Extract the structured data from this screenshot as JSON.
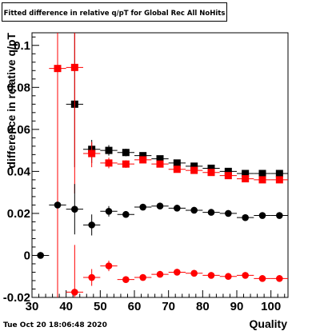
{
  "timestamp": "Tue Oct 20 18:06:48 2020",
  "colors": {
    "series_black": "#000000",
    "series_red": "#ff0000",
    "frame": "#000000"
  },
  "chart_data": {
    "type": "scatter",
    "title": "Fitted difference in relative q/pT for Global Rec All NoHits",
    "xlabel": "Quality",
    "ylabel": "difference in relative q/pT",
    "xlim": [
      30,
      105
    ],
    "ylim": [
      -0.02,
      0.106
    ],
    "x_ticks": [
      30,
      40,
      50,
      60,
      70,
      80,
      90,
      100
    ],
    "x_tick_labels": [
      "30",
      "40",
      "50",
      "60",
      "70",
      "80",
      "90",
      "100"
    ],
    "y_ticks": [
      -0.02,
      0,
      0.02,
      0.04,
      0.06,
      0.08,
      0.1
    ],
    "y_tick_labels": [
      "-0.02",
      "0",
      "0.02",
      "0.04",
      "0.06",
      "0.08",
      "0.1"
    ],
    "grid": false,
    "legend": "none",
    "series": [
      {
        "color": "#000000",
        "marker": "square",
        "points": [
          {
            "x": 42.5,
            "y": 0.072,
            "ex": 2.5,
            "ey_lo": 0.03,
            "ey_hi": 0.04
          },
          {
            "x": 47.5,
            "y": 0.0505,
            "ex": 2.5,
            "ey_lo": 0.0065,
            "ey_hi": 0.0045
          },
          {
            "x": 52.5,
            "y": 0.05,
            "ex": 2.5,
            "ey_lo": 0.0025,
            "ey_hi": 0.0025
          },
          {
            "x": 57.5,
            "y": 0.049,
            "ex": 2.5,
            "ey_lo": 0.0018,
            "ey_hi": 0.0018
          },
          {
            "x": 62.5,
            "y": 0.0475,
            "ex": 2.5,
            "ey_lo": 0.0015,
            "ey_hi": 0.0015
          },
          {
            "x": 67.5,
            "y": 0.046,
            "ex": 2.5,
            "ey_lo": 0.0013,
            "ey_hi": 0.0013
          },
          {
            "x": 72.5,
            "y": 0.044,
            "ex": 2.5,
            "ey_lo": 0.0012,
            "ey_hi": 0.0012
          },
          {
            "x": 77.5,
            "y": 0.0425,
            "ex": 2.5,
            "ey_lo": 0.0011,
            "ey_hi": 0.0011
          },
          {
            "x": 82.5,
            "y": 0.0415,
            "ex": 2.5,
            "ey_lo": 0.0011,
            "ey_hi": 0.0011
          },
          {
            "x": 87.5,
            "y": 0.04,
            "ex": 2.5,
            "ey_lo": 0.001,
            "ey_hi": 0.001
          },
          {
            "x": 92.5,
            "y": 0.039,
            "ex": 2.5,
            "ey_lo": 0.001,
            "ey_hi": 0.001
          },
          {
            "x": 97.5,
            "y": 0.039,
            "ex": 2.5,
            "ey_lo": 0.001,
            "ey_hi": 0.001
          },
          {
            "x": 102.5,
            "y": 0.039,
            "ex": 2.5,
            "ey_lo": 0.001,
            "ey_hi": 0.001
          }
        ]
      },
      {
        "color": "#ff0000",
        "marker": "square",
        "points": [
          {
            "x": 37.5,
            "y": 0.089,
            "ex": 2.5,
            "ey_lo": 0.109,
            "ey_hi": 0.02
          },
          {
            "x": 42.5,
            "y": 0.0895,
            "ex": 2.5,
            "ey_lo": 0.06,
            "ey_hi": 0.02
          },
          {
            "x": 47.5,
            "y": 0.0485,
            "ex": 2.5,
            "ey_lo": 0.0065,
            "ey_hi": 0.0055
          },
          {
            "x": 52.5,
            "y": 0.044,
            "ex": 2.5,
            "ey_lo": 0.0025,
            "ey_hi": 0.0025
          },
          {
            "x": 57.5,
            "y": 0.0435,
            "ex": 2.5,
            "ey_lo": 0.0018,
            "ey_hi": 0.0018
          },
          {
            "x": 62.5,
            "y": 0.0455,
            "ex": 2.5,
            "ey_lo": 0.0015,
            "ey_hi": 0.0015
          },
          {
            "x": 67.5,
            "y": 0.0435,
            "ex": 2.5,
            "ey_lo": 0.0013,
            "ey_hi": 0.0013
          },
          {
            "x": 72.5,
            "y": 0.041,
            "ex": 2.5,
            "ey_lo": 0.0012,
            "ey_hi": 0.0012
          },
          {
            "x": 77.5,
            "y": 0.0405,
            "ex": 2.5,
            "ey_lo": 0.0011,
            "ey_hi": 0.0011
          },
          {
            "x": 82.5,
            "y": 0.0395,
            "ex": 2.5,
            "ey_lo": 0.0011,
            "ey_hi": 0.0011
          },
          {
            "x": 87.5,
            "y": 0.038,
            "ex": 2.5,
            "ey_lo": 0.001,
            "ey_hi": 0.001
          },
          {
            "x": 92.5,
            "y": 0.0365,
            "ex": 2.5,
            "ey_lo": 0.001,
            "ey_hi": 0.001
          },
          {
            "x": 97.5,
            "y": 0.036,
            "ex": 2.5,
            "ey_lo": 0.001,
            "ey_hi": 0.001
          },
          {
            "x": 102.5,
            "y": 0.036,
            "ex": 2.5,
            "ey_lo": 0.001,
            "ey_hi": 0.001
          }
        ]
      },
      {
        "color": "#000000",
        "marker": "circle",
        "points": [
          {
            "x": 32.5,
            "y": 0.0,
            "ex": 2.5,
            "ey_lo": 0.0,
            "ey_hi": 0.0
          },
          {
            "x": 37.5,
            "y": 0.024,
            "ex": 2.5,
            "ey_lo": 0.0,
            "ey_hi": 0.0
          },
          {
            "x": 42.5,
            "y": 0.022,
            "ex": 2.5,
            "ey_lo": 0.012,
            "ey_hi": 0.012
          },
          {
            "x": 47.5,
            "y": 0.0145,
            "ex": 2.5,
            "ey_lo": 0.005,
            "ey_hi": 0.005
          },
          {
            "x": 52.5,
            "y": 0.021,
            "ex": 2.5,
            "ey_lo": 0.0025,
            "ey_hi": 0.0025
          },
          {
            "x": 57.5,
            "y": 0.0195,
            "ex": 2.5,
            "ey_lo": 0.0015,
            "ey_hi": 0.0015
          },
          {
            "x": 62.5,
            "y": 0.023,
            "ex": 2.5,
            "ey_lo": 0.0013,
            "ey_hi": 0.0013
          },
          {
            "x": 67.5,
            "y": 0.0235,
            "ex": 2.5,
            "ey_lo": 0.0012,
            "ey_hi": 0.0012
          },
          {
            "x": 72.5,
            "y": 0.0225,
            "ex": 2.5,
            "ey_lo": 0.0011,
            "ey_hi": 0.0011
          },
          {
            "x": 77.5,
            "y": 0.0215,
            "ex": 2.5,
            "ey_lo": 0.001,
            "ey_hi": 0.001
          },
          {
            "x": 82.5,
            "y": 0.0205,
            "ex": 2.5,
            "ey_lo": 0.001,
            "ey_hi": 0.001
          },
          {
            "x": 87.5,
            "y": 0.02,
            "ex": 2.5,
            "ey_lo": 0.001,
            "ey_hi": 0.001
          },
          {
            "x": 92.5,
            "y": 0.018,
            "ex": 2.5,
            "ey_lo": 0.001,
            "ey_hi": 0.001
          },
          {
            "x": 97.5,
            "y": 0.019,
            "ex": 2.5,
            "ey_lo": 0.001,
            "ey_hi": 0.001
          },
          {
            "x": 102.5,
            "y": 0.019,
            "ex": 2.5,
            "ey_lo": 0.001,
            "ey_hi": 0.001
          }
        ]
      },
      {
        "color": "#ff0000",
        "marker": "circle",
        "points": [
          {
            "x": 42.5,
            "y": -0.0175,
            "ex": 2.5,
            "ey_lo": 0.003,
            "ey_hi": 0.0225
          },
          {
            "x": 47.5,
            "y": -0.0105,
            "ex": 2.5,
            "ey_lo": 0.004,
            "ey_hi": 0.004
          },
          {
            "x": 52.5,
            "y": -0.005,
            "ex": 2.5,
            "ey_lo": 0.0025,
            "ey_hi": 0.0025
          },
          {
            "x": 57.5,
            "y": -0.0115,
            "ex": 2.5,
            "ey_lo": 0.0015,
            "ey_hi": 0.0015
          },
          {
            "x": 62.5,
            "y": -0.0105,
            "ex": 2.5,
            "ey_lo": 0.0013,
            "ey_hi": 0.0013
          },
          {
            "x": 67.5,
            "y": -0.009,
            "ex": 2.5,
            "ey_lo": 0.0012,
            "ey_hi": 0.0012
          },
          {
            "x": 72.5,
            "y": -0.008,
            "ex": 2.5,
            "ey_lo": 0.0011,
            "ey_hi": 0.0011
          },
          {
            "x": 77.5,
            "y": -0.0085,
            "ex": 2.5,
            "ey_lo": 0.001,
            "ey_hi": 0.001
          },
          {
            "x": 82.5,
            "y": -0.0095,
            "ex": 2.5,
            "ey_lo": 0.001,
            "ey_hi": 0.001
          },
          {
            "x": 87.5,
            "y": -0.01,
            "ex": 2.5,
            "ey_lo": 0.001,
            "ey_hi": 0.001
          },
          {
            "x": 92.5,
            "y": -0.0095,
            "ex": 2.5,
            "ey_lo": 0.001,
            "ey_hi": 0.001
          },
          {
            "x": 97.5,
            "y": -0.011,
            "ex": 2.5,
            "ey_lo": 0.001,
            "ey_hi": 0.001
          },
          {
            "x": 102.5,
            "y": -0.011,
            "ex": 2.5,
            "ey_lo": 0.001,
            "ey_hi": 0.001
          }
        ]
      }
    ]
  }
}
